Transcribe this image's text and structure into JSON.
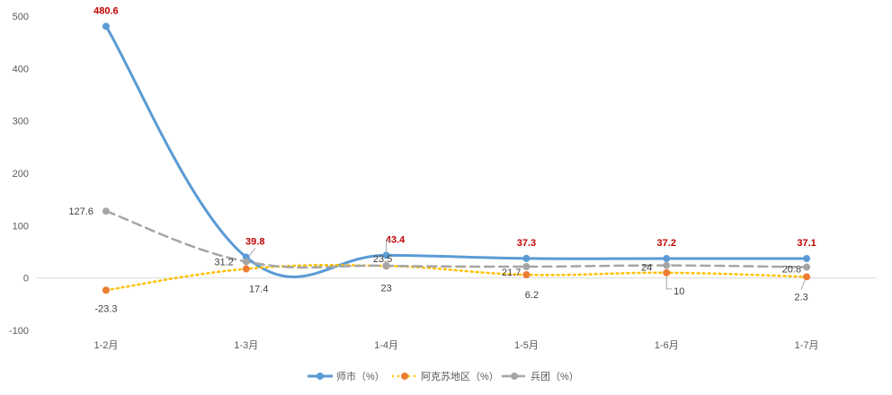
{
  "chart_data": {
    "type": "line",
    "categories": [
      "1-2月",
      "1-3月",
      "1-4月",
      "1-5月",
      "1-6月",
      "1-7月"
    ],
    "ylim": [
      -100,
      500
    ],
    "yticks": [
      -100,
      0,
      100,
      200,
      300,
      400,
      500
    ],
    "grid": false,
    "legend": "bottom",
    "series": [
      {
        "name": "师市（%）",
        "values": [
          480.6,
          39.8,
          43.4,
          37.3,
          37.2,
          37.1
        ],
        "labels": [
          "480.6",
          "39.8",
          "43.4",
          "37.3",
          "37.2",
          "37.1"
        ],
        "color": "#5b9bd5",
        "label_color": "#c00000",
        "style": "solid"
      },
      {
        "name": "阿克苏地区（%）",
        "values": [
          -23.3,
          17.4,
          23,
          6.2,
          10,
          2.3
        ],
        "labels": [
          "-23.3",
          "17.4",
          "23",
          "6.2",
          "10",
          "2.3"
        ],
        "color": "#ed7d31",
        "line_color": "#ffc000",
        "label_color": "#404040",
        "style": "dotted"
      },
      {
        "name": "兵团（%）",
        "values": [
          127.6,
          31.2,
          23.5,
          21.7,
          24,
          20.8
        ],
        "labels": [
          "127.6",
          "31.2",
          "23.5",
          "21.7",
          "24",
          "20.8"
        ],
        "color": "#a5a5a5",
        "label_color": "#404040",
        "style": "dashed"
      }
    ]
  }
}
